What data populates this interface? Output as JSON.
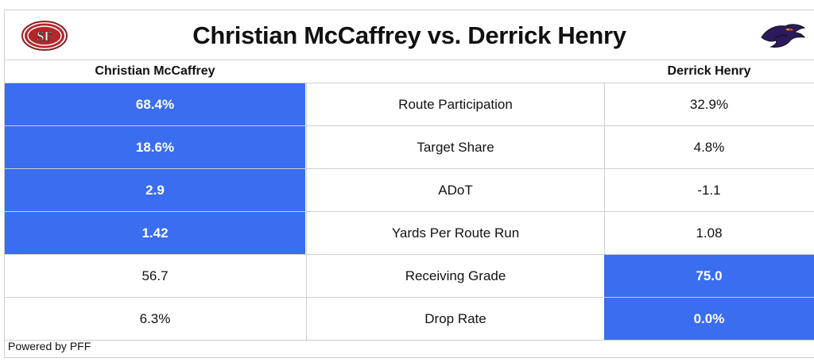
{
  "title": "Christian McCaffrey vs. Derrick Henry",
  "logos": {
    "left": {
      "icon": "49ers-logo-icon",
      "text": "SF"
    },
    "right": {
      "icon": "ravens-logo-icon"
    }
  },
  "columns": {
    "left_player": "Christian McCaffrey",
    "right_player": "Derrick Henry"
  },
  "colors": {
    "highlight": "#3a6df0",
    "grid": "#cfcfcf",
    "text": "#111111"
  },
  "chart_data": {
    "type": "table",
    "title": "Christian McCaffrey vs. Derrick Henry",
    "columns": [
      "Christian McCaffrey",
      "",
      "Derrick Henry"
    ],
    "rows": [
      {
        "metric": "Route Participation",
        "left": "68.4%",
        "right": "32.9%",
        "highlight": "left"
      },
      {
        "metric": "Target Share",
        "left": "18.6%",
        "right": "4.8%",
        "highlight": "left"
      },
      {
        "metric": "ADoT",
        "left": "2.9",
        "right": "-1.1",
        "highlight": "left"
      },
      {
        "metric": "Yards Per Route Run",
        "left": "1.42",
        "right": "1.08",
        "highlight": "left"
      },
      {
        "metric": "Receiving Grade",
        "left": "56.7",
        "right": "75.0",
        "highlight": "right"
      },
      {
        "metric": "Drop Rate",
        "left": "6.3%",
        "right": "0.0%",
        "highlight": "right"
      }
    ]
  },
  "footer": "Powered by PFF"
}
